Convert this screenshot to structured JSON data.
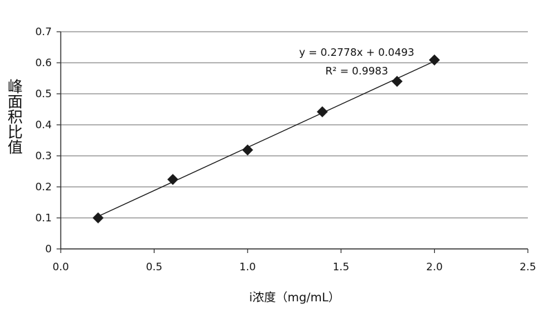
{
  "chart_data": {
    "type": "scatter",
    "title": "",
    "xlabel": "i浓度（mg/mL）",
    "ylabel": "峰面积比值",
    "xlim": [
      0,
      2.5
    ],
    "ylim": [
      0,
      0.7
    ],
    "x_ticks": [
      "0.0",
      "0.5",
      "1.0",
      "1.5",
      "2.0",
      "2.5"
    ],
    "y_ticks": [
      "0",
      "0.1",
      "0.2",
      "0.3",
      "0.4",
      "0.5",
      "0.6",
      "0.7"
    ],
    "grid": "horizontal",
    "series": [
      {
        "x": [
          0.2,
          0.6,
          1.0,
          1.4,
          1.8,
          2.0
        ],
        "y": [
          0.1,
          0.224,
          0.319,
          0.442,
          0.54,
          0.609
        ],
        "marker": "diamond",
        "color": "#1a1a1a"
      }
    ],
    "trendline": {
      "type": "linear",
      "slope": 0.2778,
      "intercept": 0.0493,
      "x_range": [
        0.2,
        2.0
      ],
      "equation": "y = 0.2778x + 0.0493",
      "r_squared": "R² = 0.9983"
    }
  }
}
